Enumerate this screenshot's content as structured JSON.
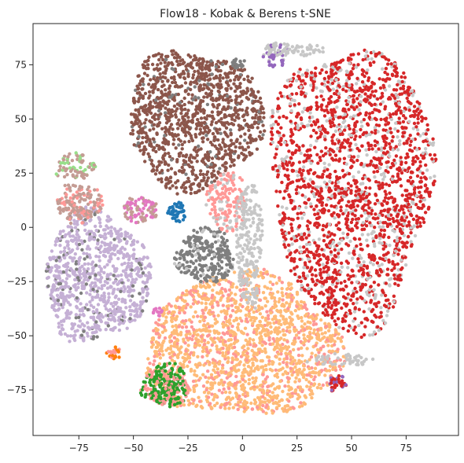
{
  "chart_data": {
    "type": "scatter",
    "title": "Flow18 - Kobak & Berens t-SNE",
    "xlabel": "",
    "ylabel": "",
    "xlim": [
      -96,
      99
    ],
    "ylim": [
      -96,
      94
    ],
    "xticks": [
      -75,
      -50,
      -25,
      0,
      25,
      50,
      75
    ],
    "yticks": [
      -75,
      -50,
      -25,
      0,
      25,
      50,
      75
    ],
    "grid": false,
    "legend": "none",
    "clusters": [
      {
        "color": "#d62728",
        "cx": 50,
        "cy": 20,
        "rx": 37,
        "ry": 65,
        "n": 2200,
        "speckle": "#c7c7c7",
        "speckle_ratio": 0.22
      },
      {
        "color": "#8c564b",
        "cx": -22,
        "cy": 50,
        "rx": 31,
        "ry": 32,
        "n": 1200,
        "speckle": "#7f7f7f",
        "speckle_ratio": 0.08
      },
      {
        "color": "#c5b0d5",
        "cx": -67,
        "cy": -23,
        "rx": 24,
        "ry": 30,
        "n": 900,
        "speckle": "#7f7f7f",
        "speckle_ratio": 0.1
      },
      {
        "color": "#ffbb78",
        "cx": 0,
        "cy": -55,
        "rx": 45,
        "ry": 33,
        "n": 1700,
        "speckle": "#ff9896",
        "speckle_ratio": 0.25
      },
      {
        "color": "#7f7f7f",
        "cx": -17,
        "cy": -13,
        "rx": 13,
        "ry": 13,
        "n": 300,
        "speckle": "#c7c7c7",
        "speckle_ratio": 0.1
      },
      {
        "color": "#ff9896",
        "cx": -7,
        "cy": 12,
        "rx": 9,
        "ry": 14,
        "n": 160,
        "speckle": "#c7c7c7",
        "speckle_ratio": 0.2
      },
      {
        "color": "#c7c7c7",
        "cx": 3,
        "cy": -8,
        "rx": 6,
        "ry": 30,
        "n": 220,
        "speckle": "#c7c7c7",
        "speckle_ratio": 0
      },
      {
        "color": "#c49c94",
        "cx": -75,
        "cy": 11,
        "rx": 11,
        "ry": 9,
        "n": 160,
        "speckle": "#ff9896",
        "speckle_ratio": 0.3
      },
      {
        "color": "#e377c2",
        "cx": -47,
        "cy": 8,
        "rx": 8,
        "ry": 6,
        "n": 90,
        "speckle": "#c49c94",
        "speckle_ratio": 0.4
      },
      {
        "color": "#c49c94",
        "cx": -77,
        "cy": 28,
        "rx": 9,
        "ry": 6,
        "n": 80,
        "speckle": "#98df8a",
        "speckle_ratio": 0.4
      },
      {
        "color": "#2ca02c",
        "cx": -35,
        "cy": -73,
        "rx": 11,
        "ry": 10,
        "n": 260,
        "speckle": "#ff9896",
        "speckle_ratio": 0.35
      },
      {
        "color": "#1f77b4",
        "cx": -30,
        "cy": 7,
        "rx": 4,
        "ry": 5,
        "n": 40,
        "speckle": "#1f77b4",
        "speckle_ratio": 0
      },
      {
        "color": "#9467bd",
        "cx": 15,
        "cy": 80,
        "rx": 6,
        "ry": 6,
        "n": 50,
        "speckle": "#c7c7c7",
        "speckle_ratio": 0.3
      },
      {
        "color": "#c7c7c7",
        "cx": 25,
        "cy": 82,
        "rx": 14,
        "ry": 3,
        "n": 60,
        "speckle": "#c7c7c7",
        "speckle_ratio": 0
      },
      {
        "color": "#7f7f7f",
        "cx": -2,
        "cy": 76,
        "rx": 3,
        "ry": 3,
        "n": 20,
        "speckle": "#7f7f7f",
        "speckle_ratio": 0
      },
      {
        "color": "#d62728",
        "cx": 44,
        "cy": -72,
        "rx": 5,
        "ry": 4,
        "n": 40,
        "speckle": "#9467bd",
        "speckle_ratio": 0.3
      },
      {
        "color": "#c7c7c7",
        "cx": 45,
        "cy": -61,
        "rx": 15,
        "ry": 3,
        "n": 50,
        "speckle": "#c7c7c7",
        "speckle_ratio": 0
      },
      {
        "color": "#ff7f0e",
        "cx": -59,
        "cy": -58,
        "rx": 3,
        "ry": 3,
        "n": 20,
        "speckle": "#ff9896",
        "speckle_ratio": 0.4
      },
      {
        "color": "#e377c2",
        "cx": -39,
        "cy": -39,
        "rx": 3,
        "ry": 2,
        "n": 15,
        "speckle": "#e377c2",
        "speckle_ratio": 0
      }
    ]
  }
}
